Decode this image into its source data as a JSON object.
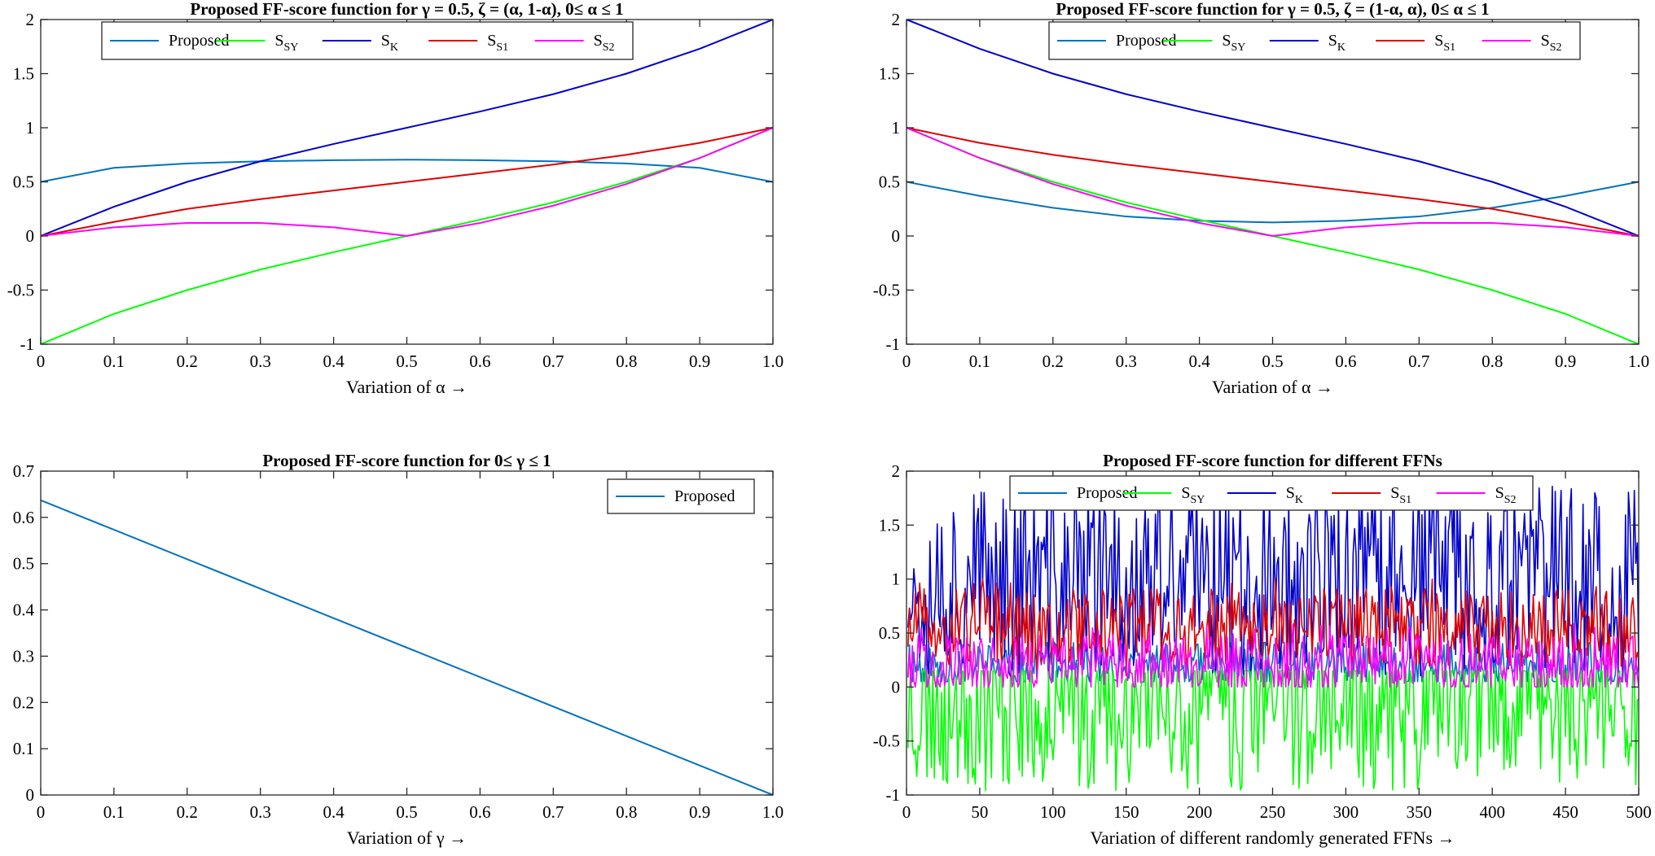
{
  "colors": {
    "Proposed": "#0072BD",
    "SSY": "#00FF00",
    "SK": "#0000CC",
    "SS1": "#E00000",
    "SS2": "#FF00FF"
  },
  "chart_data": [
    {
      "type": "line",
      "title_parts": [
        "Proposed FF-score function for ",
        "γ",
        " = 0.5, ",
        "ζ",
        " = (",
        "α",
        ", 1-",
        "α",
        "), 0≤ ",
        "α",
        " ≤ 1"
      ],
      "xlabel": "Variation of α →",
      "ylabel": "",
      "xlim": [
        0,
        1
      ],
      "ylim": [
        -1,
        2
      ],
      "xticks": [
        0,
        0.1,
        0.2,
        0.3,
        0.4,
        0.5,
        0.6,
        0.7,
        0.8,
        0.9,
        1.0
      ],
      "xtick_labels": [
        "0",
        "0.1",
        "0.2",
        "0.3",
        "0.4",
        "0.5",
        "0.6",
        "0.7",
        "0.8",
        "0.9",
        "1.0"
      ],
      "yticks": [
        -1,
        -0.5,
        0,
        0.5,
        1,
        1.5,
        2
      ],
      "ytick_labels": [
        "-1",
        "-0.5",
        "0",
        "0.5",
        "1",
        "1.5",
        "2"
      ],
      "legend_position": "top",
      "x": [
        0,
        0.1,
        0.2,
        0.3,
        0.4,
        0.5,
        0.6,
        0.7,
        0.8,
        0.9,
        1.0
      ],
      "series": [
        {
          "key": "Proposed",
          "name": "Proposed",
          "values": [
            0.5,
            0.63,
            0.67,
            0.69,
            0.7,
            0.705,
            0.7,
            0.69,
            0.67,
            0.63,
            0.5
          ]
        },
        {
          "key": "SSY",
          "name": "S",
          "sub": "SY",
          "values": [
            -1,
            -0.72,
            -0.5,
            -0.31,
            -0.15,
            0,
            0.15,
            0.31,
            0.5,
            0.72,
            1
          ]
        },
        {
          "key": "SK",
          "name": "S",
          "sub": "K",
          "values": [
            0,
            0.27,
            0.5,
            0.69,
            0.85,
            1.0,
            1.15,
            1.31,
            1.5,
            1.73,
            2.0
          ]
        },
        {
          "key": "SS1",
          "name": "S",
          "sub": "S1",
          "values": [
            0,
            0.13,
            0.25,
            0.34,
            0.42,
            0.5,
            0.58,
            0.66,
            0.75,
            0.86,
            1.0
          ]
        },
        {
          "key": "SS2",
          "name": "S",
          "sub": "S2",
          "values": [
            0,
            0.08,
            0.12,
            0.12,
            0.08,
            0,
            0.12,
            0.28,
            0.48,
            0.72,
            1.0
          ]
        }
      ]
    },
    {
      "type": "line",
      "title_parts": [
        "Proposed FF-score function for ",
        "γ",
        " = 0.5, ",
        "ζ",
        " = (1-",
        "α",
        ", ",
        "α",
        "), 0≤ ",
        "α",
        " ≤ 1"
      ],
      "xlabel": "Variation of α →",
      "ylabel": "",
      "xlim": [
        0,
        1
      ],
      "ylim": [
        -1,
        2
      ],
      "xticks": [
        0,
        0.1,
        0.2,
        0.3,
        0.4,
        0.5,
        0.6,
        0.7,
        0.8,
        0.9,
        1.0
      ],
      "xtick_labels": [
        "0",
        "0.1",
        "0.2",
        "0.3",
        "0.4",
        "0.5",
        "0.6",
        "0.7",
        "0.8",
        "0.9",
        "1.0"
      ],
      "yticks": [
        -1,
        -0.5,
        0,
        0.5,
        1,
        1.5,
        2
      ],
      "ytick_labels": [
        "-1",
        "-0.5",
        "0",
        "0.5",
        "1",
        "1.5",
        "2"
      ],
      "legend_position": "top",
      "x": [
        0,
        0.1,
        0.2,
        0.3,
        0.4,
        0.5,
        0.6,
        0.7,
        0.8,
        0.9,
        1.0
      ],
      "series": [
        {
          "key": "Proposed",
          "name": "Proposed",
          "values": [
            0.5,
            0.37,
            0.26,
            0.18,
            0.14,
            0.125,
            0.14,
            0.18,
            0.26,
            0.37,
            0.5
          ]
        },
        {
          "key": "SSY",
          "name": "S",
          "sub": "SY",
          "values": [
            1,
            0.72,
            0.5,
            0.31,
            0.15,
            0,
            -0.15,
            -0.31,
            -0.5,
            -0.72,
            -1
          ]
        },
        {
          "key": "SK",
          "name": "S",
          "sub": "K",
          "values": [
            2.0,
            1.73,
            1.5,
            1.31,
            1.15,
            1.0,
            0.85,
            0.69,
            0.5,
            0.27,
            0
          ]
        },
        {
          "key": "SS1",
          "name": "S",
          "sub": "S1",
          "values": [
            1.0,
            0.86,
            0.75,
            0.66,
            0.58,
            0.5,
            0.42,
            0.34,
            0.25,
            0.13,
            0
          ]
        },
        {
          "key": "SS2",
          "name": "S",
          "sub": "S2",
          "values": [
            1.0,
            0.72,
            0.48,
            0.28,
            0.12,
            0,
            0.08,
            0.12,
            0.12,
            0.08,
            0
          ]
        }
      ]
    },
    {
      "type": "line",
      "title_parts": [
        "Proposed FF-score function for 0≤ ",
        "γ",
        " ≤ 1"
      ],
      "xlabel": "Variation of γ →",
      "ylabel": "",
      "xlim": [
        0,
        1
      ],
      "ylim": [
        0,
        0.7
      ],
      "xticks": [
        0,
        0.1,
        0.2,
        0.3,
        0.4,
        0.5,
        0.6,
        0.7,
        0.8,
        0.9,
        1.0
      ],
      "xtick_labels": [
        "0",
        "0.1",
        "0.2",
        "0.3",
        "0.4",
        "0.5",
        "0.6",
        "0.7",
        "0.8",
        "0.9",
        "1.0"
      ],
      "yticks": [
        0,
        0.1,
        0.2,
        0.3,
        0.4,
        0.5,
        0.6,
        0.7
      ],
      "ytick_labels": [
        "0",
        "0.1",
        "0.2",
        "0.3",
        "0.4",
        "0.5",
        "0.6",
        "0.7"
      ],
      "legend_position": "top-right",
      "x": [
        0,
        1.0
      ],
      "series": [
        {
          "key": "Proposed",
          "name": "Proposed",
          "values": [
            0.637,
            0
          ]
        }
      ]
    },
    {
      "type": "line",
      "title_parts": [
        "Proposed FF-score function for different FFNs"
      ],
      "xlabel": "Variation of different randomly generated FFNs →",
      "ylabel": "",
      "xlim": [
        0,
        500
      ],
      "ylim": [
        -1,
        2
      ],
      "xticks": [
        0,
        50,
        100,
        150,
        200,
        250,
        300,
        350,
        400,
        450,
        500
      ],
      "xtick_labels": [
        "0",
        "50",
        "100",
        "150",
        "200",
        "250",
        "300",
        "350",
        "400",
        "450",
        "500"
      ],
      "yticks": [
        -1,
        -0.5,
        0,
        0.5,
        1,
        1.5,
        2
      ],
      "ytick_labels": [
        "-1",
        "-0.5",
        "0",
        "0.5",
        "1",
        "1.5",
        "2"
      ],
      "legend_position": "top",
      "x_count": 500,
      "series": [
        {
          "key": "Proposed",
          "name": "Proposed",
          "mean": 0.2,
          "amp": 0.12,
          "min": 0.05,
          "max": 0.5,
          "seed": 11
        },
        {
          "key": "SSY",
          "name": "S",
          "sub": "SY",
          "mean": -0.15,
          "amp": 0.45,
          "min": -0.98,
          "max": 0.15,
          "seed": 23
        },
        {
          "key": "SK",
          "name": "S",
          "sub": "K",
          "mean": 1.0,
          "amp": 0.5,
          "min": 0.1,
          "max": 1.98,
          "seed": 37
        },
        {
          "key": "SS1",
          "name": "S",
          "sub": "S1",
          "mean": 0.55,
          "amp": 0.2,
          "min": 0.05,
          "max": 1.0,
          "seed": 51
        },
        {
          "key": "SS2",
          "name": "S",
          "sub": "S2",
          "mean": 0.22,
          "amp": 0.15,
          "min": 0.0,
          "max": 0.75,
          "seed": 67
        }
      ]
    }
  ]
}
